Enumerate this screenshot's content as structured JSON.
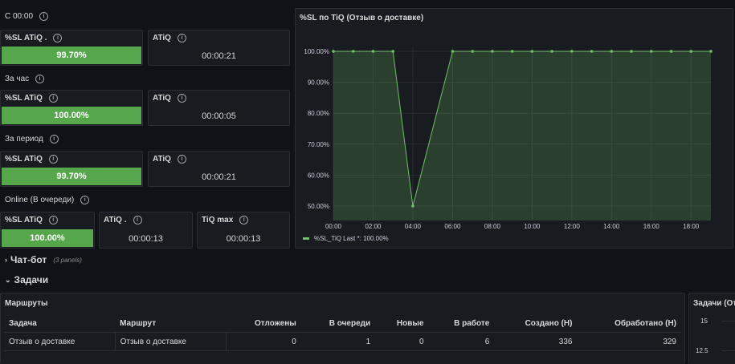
{
  "sections": {
    "s1": "С 00:00",
    "s2": "За час",
    "s3": "За период",
    "s4": "Online (В очереди)"
  },
  "stats": {
    "s1_sl_title": "%SL ATiQ .",
    "s1_sl_value": "99.70%",
    "s1_atiq_title": "ATiQ",
    "s1_atiq_value": "00:00:21",
    "s2_sl_title": "%SL ATiQ",
    "s2_sl_value": "100.00%",
    "s2_atiq_title": "ATiQ",
    "s2_atiq_value": "00:00:05",
    "s3_sl_title": "%SL ATiQ",
    "s3_sl_value": "99.70%",
    "s3_atiq_title": "ATiQ",
    "s3_atiq_value": "00:00:21",
    "s4_sl_title": "%SL ATiQ",
    "s4_sl_value": "100.00%",
    "s4_atiq_title": "ATiQ .",
    "s4_atiq_value": "00:00:13",
    "s4_tiqmax_title": "TiQ max",
    "s4_tiqmax_value": "00:00:13"
  },
  "colors": {
    "green": "#56a64b",
    "bg": "#111217",
    "panel": "#181b1f",
    "line": "#73bf69"
  },
  "chart_panel_title": "%SL по TiQ (Отзыв о доставке)",
  "chart_data": {
    "type": "area",
    "x": [
      "00:00",
      "01:00",
      "02:00",
      "03:00",
      "04:00",
      "05:00",
      "06:00",
      "07:00",
      "08:00",
      "09:00",
      "10:00",
      "11:00",
      "12:00",
      "13:00",
      "14:00",
      "15:00",
      "16:00",
      "17:00",
      "18:00",
      "19:00"
    ],
    "series": [
      {
        "name": "%SL_TiQ",
        "values": [
          100,
          100,
          100,
          100,
          50,
          75,
          100,
          100,
          100,
          100,
          100,
          100,
          100,
          100,
          100,
          100,
          100,
          100,
          100,
          100
        ]
      }
    ],
    "xticks": [
      "00:00",
      "02:00",
      "04:00",
      "06:00",
      "08:00",
      "10:00",
      "12:00",
      "14:00",
      "16:00",
      "18:00"
    ],
    "yticks": [
      "50.00%",
      "60.00%",
      "70.00%",
      "80.00%",
      "90.00%",
      "100.00%"
    ],
    "ylim": [
      50,
      100
    ],
    "legend_label": "%SL_TiQ  Last *: 100.00%",
    "grid": true
  },
  "rows": {
    "chatbot_label": "Чат-бот",
    "chatbot_count": "(3 panels)",
    "tasks_label": "Задачи"
  },
  "routes": {
    "title": "Маршруты",
    "columns": [
      "Задача",
      "Маршрут",
      "Отложены",
      "В очереди",
      "Новые",
      "В работе",
      "Создано (Н)",
      "Обработано (Н)"
    ],
    "rows": [
      [
        "Отзыв о доставке",
        "Отзыв о доставке",
        "0",
        "1",
        "0",
        "6",
        "336",
        "329"
      ]
    ]
  },
  "tasks_chart": {
    "title": "Задачи (От",
    "yticks": [
      "15",
      "12.5"
    ]
  }
}
